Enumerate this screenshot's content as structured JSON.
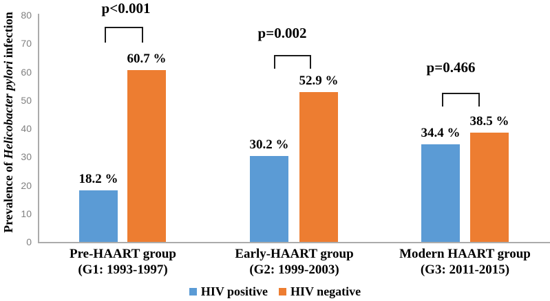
{
  "chart_data": {
    "type": "bar",
    "title": "",
    "ylabel_parts": {
      "prefix": "Prevalence of ",
      "italic": "Helicobacter pylori",
      "suffix": " infection"
    },
    "ylim": [
      0,
      80
    ],
    "yticks": [
      0,
      10,
      20,
      30,
      40,
      50,
      60,
      70,
      80
    ],
    "grid": false,
    "legend_position": "bottom",
    "categories": [
      {
        "line1": "Pre-HAART group",
        "line2": "(G1: 1993-1997)"
      },
      {
        "line1": "Early-HAART group",
        "line2": "(G2: 1999-2003)"
      },
      {
        "line1": "Modern HAART group",
        "line2": "(G3: 2011-2015)"
      }
    ],
    "series": [
      {
        "name": "HIV positive",
        "color": "#5B9BD5",
        "values": [
          18.2,
          30.2,
          34.4
        ],
        "labels": [
          "18.2 %",
          "30.2 %",
          "34.4 %"
        ]
      },
      {
        "name": "HIV negative",
        "color": "#ED7D31",
        "values": [
          60.7,
          52.9,
          38.5
        ],
        "labels": [
          "60.7 %",
          "52.9 %",
          "38.5 %"
        ]
      }
    ],
    "p_values": [
      "p<0.001",
      "p=0.002",
      "p=0.466"
    ]
  },
  "colors": {
    "hiv_positive": "#5B9BD5",
    "hiv_negative": "#ED7D31",
    "axis_line": "#ABABAB",
    "tick_text": "#808080",
    "annotation_text": "#000000"
  }
}
